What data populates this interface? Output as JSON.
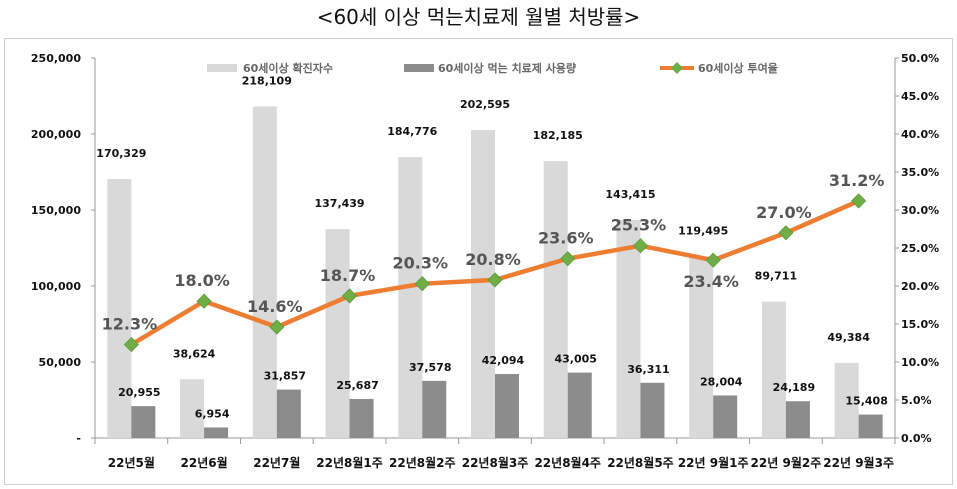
{
  "title": "<60세 이상 먹는치료제 월별 처방률>",
  "chart_data": {
    "type": "bar",
    "categories": [
      "22년5월",
      "22년6월",
      "22년7월",
      "22년8월1주",
      "22년8월2주",
      "22년8월3주",
      "22년8월4주",
      "22년8월5주",
      "22년 9월1주",
      "22년 9월2주",
      "22년 9월3주"
    ],
    "series": [
      {
        "name": "60세이상 확진자수",
        "type": "bar",
        "axis": "left",
        "color": "#d9d9d9",
        "values": [
          170329,
          38624,
          218109,
          137439,
          184776,
          202595,
          182185,
          143415,
          119495,
          89711,
          49384
        ],
        "labels": [
          "170,329",
          "38,624",
          "218,109",
          "137,439",
          "184,776",
          "202,595",
          "182,185",
          "143,415",
          "119,495",
          "89,711",
          "49,384"
        ]
      },
      {
        "name": "60세이상 먹는 치료제 사용량",
        "type": "bar",
        "axis": "left",
        "color": "#8c8c8c",
        "values": [
          20955,
          6954,
          31857,
          25687,
          37578,
          42094,
          43005,
          36311,
          28004,
          24189,
          15408
        ],
        "labels": [
          "20,955",
          "6,954",
          "31,857",
          "25,687",
          "37,578",
          "42,094",
          "43,005",
          "36,311",
          "28,004",
          "24,189",
          "15,408"
        ]
      },
      {
        "name": "60세이상 투여율",
        "type": "line",
        "axis": "right",
        "color": "#ed7d31",
        "marker_color": "#70ad47",
        "values": [
          12.3,
          18.0,
          14.6,
          18.7,
          20.3,
          20.8,
          23.6,
          25.3,
          23.4,
          27.0,
          31.2
        ],
        "labels": [
          "12.3%",
          "18.0%",
          "14.6%",
          "18.7%",
          "20.3%",
          "20.8%",
          "23.6%",
          "25.3%",
          "23.4%",
          "27.0%",
          "31.2%"
        ]
      }
    ],
    "y_left": {
      "range": [
        0,
        250000
      ],
      "ticks": [
        "-",
        "50,000",
        "100,000",
        "150,000",
        "200,000",
        "250,000"
      ]
    },
    "y_right": {
      "range": [
        0,
        50
      ],
      "ticks": [
        "0.0%",
        "5.0%",
        "10.0%",
        "15.0%",
        "20.0%",
        "25.0%",
        "30.0%",
        "35.0%",
        "40.0%",
        "45.0%",
        "50.0%"
      ]
    },
    "grid": false,
    "legend": "top"
  }
}
